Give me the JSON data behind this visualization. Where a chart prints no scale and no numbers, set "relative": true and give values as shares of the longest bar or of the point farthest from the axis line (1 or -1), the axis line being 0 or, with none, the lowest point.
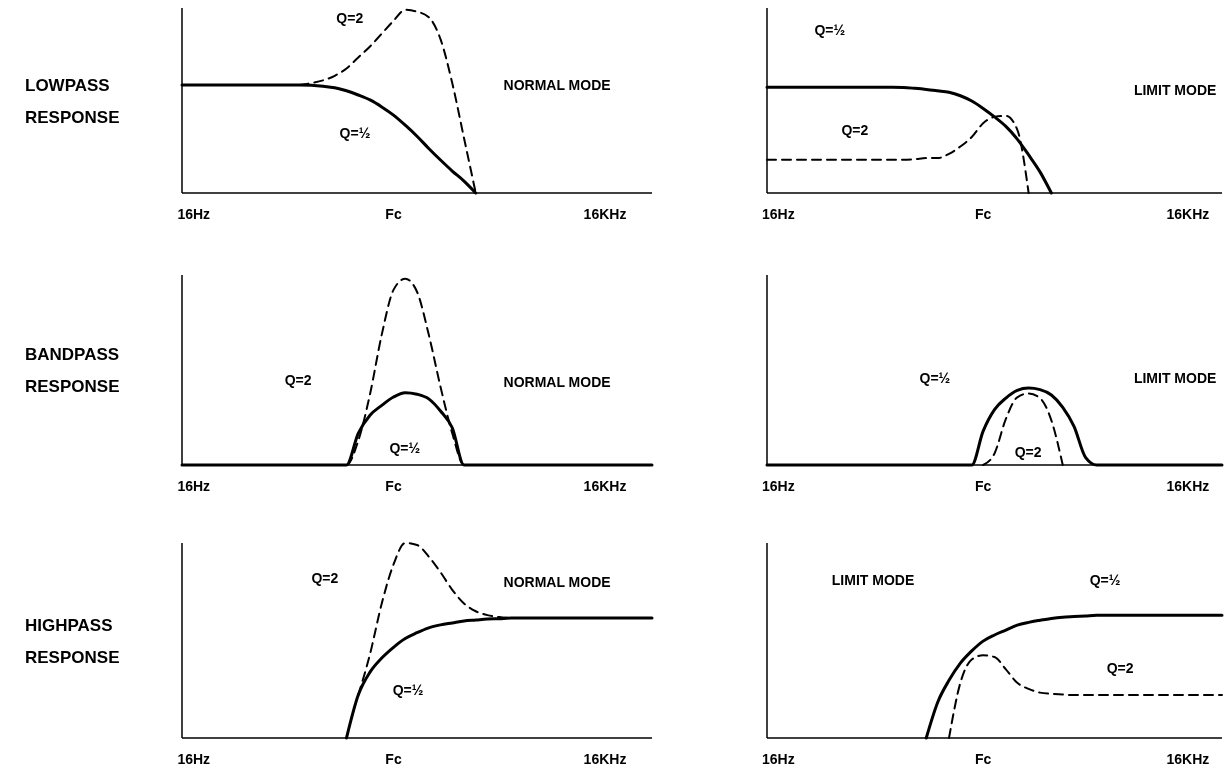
{
  "chart_data": [
    {
      "type": "line",
      "title": "LOWPASS RESPONSE",
      "relative": true,
      "categories": [
        null,
        "16Hz",
        null,
        null,
        null,
        null,
        null,
        null,
        null,
        null,
        null,
        null,
        null,
        null,
        null,
        null,
        null,
        null,
        "Fc",
        null,
        null,
        null,
        null,
        null,
        null,
        null,
        null,
        null,
        null,
        null,
        null,
        null,
        null,
        null,
        null,
        null,
        "16KHz",
        null,
        null,
        null,
        null
      ],
      "series": [
        {
          "color": "#000000",
          "line_style": "solid",
          "values": [
            0.59,
            0.59,
            0.59,
            0.59,
            0.59,
            0.59,
            0.59,
            0.59,
            0.59,
            0.59,
            0.59,
            0.588,
            0.583,
            0.575,
            0.558,
            0.535,
            0.508,
            0.47,
            0.425,
            0.37,
            0.31,
            0.243,
            0.18,
            0.12,
            0.065,
            0,
            null,
            null,
            null,
            null,
            null,
            null,
            null,
            null,
            null,
            null,
            null,
            null,
            null,
            null,
            null
          ]
        },
        {
          "color": "#000000",
          "line_style": "dashed",
          "values": [
            null,
            null,
            null,
            null,
            null,
            null,
            null,
            null,
            null,
            null,
            0.59,
            0.6,
            0.615,
            0.64,
            0.68,
            0.74,
            0.8,
            0.87,
            0.94,
            1,
            0.99,
            0.96,
            0.84,
            0.6,
            0.3,
            0,
            null,
            null,
            null,
            null,
            null,
            null,
            null,
            null,
            null,
            null,
            null,
            null,
            null,
            null,
            null
          ]
        }
      ],
      "annotations": [
        "Q=2",
        "Q=½",
        "NORMAL MODE"
      ]
    },
    {
      "type": "line",
      "relative": true,
      "categories": [
        null,
        "16Hz",
        null,
        null,
        null,
        null,
        null,
        null,
        null,
        null,
        null,
        null,
        null,
        null,
        null,
        null,
        null,
        null,
        null,
        "Fc",
        null,
        null,
        null,
        null,
        null,
        null,
        null,
        null,
        null,
        null,
        null,
        null,
        null,
        null,
        null,
        null,
        null,
        "16KHz",
        null,
        null,
        null
      ],
      "series": [
        {
          "color": "#000000",
          "line_style": "solid",
          "values": [
            1,
            1,
            1,
            1,
            1,
            1,
            1,
            1,
            1,
            1,
            1,
            1,
            0.998,
            0.99,
            0.98,
            0.967,
            0.953,
            0.92,
            0.87,
            0.8,
            0.72,
            0.63,
            0.51,
            0.36,
            0.2,
            0,
            null,
            null,
            null,
            null,
            null,
            null,
            null,
            null,
            null,
            null,
            null,
            null,
            null,
            null,
            null
          ]
        },
        {
          "color": "#000000",
          "line_style": "dashed",
          "values": [
            0.315,
            0.315,
            0.315,
            0.315,
            0.315,
            0.315,
            0.315,
            0.315,
            0.315,
            0.315,
            0.315,
            0.315,
            0.315,
            0.32,
            0.33,
            0.33,
            0.37,
            0.44,
            0.53,
            0.66,
            0.72,
            0.73,
            0.6,
            0,
            null,
            null,
            null,
            null,
            null,
            null,
            null,
            null,
            null,
            null,
            null,
            null,
            null,
            null,
            null,
            null,
            null
          ]
        }
      ],
      "annotations": [
        "Q=½",
        "Q=2",
        "LIMIT MODE"
      ]
    },
    {
      "type": "line",
      "title": "BANDPASS RESPONSE",
      "relative": true,
      "categories": [
        null,
        "16Hz",
        null,
        null,
        null,
        null,
        null,
        null,
        null,
        null,
        null,
        null,
        null,
        null,
        null,
        null,
        null,
        null,
        "Fc",
        null,
        null,
        null,
        null,
        null,
        null,
        null,
        null,
        null,
        null,
        null,
        null,
        null,
        null,
        null,
        null,
        null,
        "16KHz",
        null,
        null,
        null,
        null
      ],
      "series": [
        {
          "color": "#000000",
          "line_style": "solid",
          "values": [
            0,
            0,
            0,
            0,
            0,
            0,
            0,
            0,
            0,
            0,
            0,
            0,
            0,
            0,
            0,
            0.17,
            0.267,
            0.32,
            0.365,
            0.388,
            0.38,
            0.355,
            0.29,
            0.2,
            0,
            0,
            0,
            0,
            0,
            0,
            0,
            0,
            0,
            0,
            0,
            0,
            0,
            0,
            0,
            0,
            0
          ]
        },
        {
          "color": "#000000",
          "line_style": "dashed",
          "values": [
            0,
            0,
            0,
            0,
            0,
            0,
            0,
            0,
            0,
            0,
            0,
            0,
            0,
            0,
            0,
            0.13,
            0.38,
            0.7,
            0.94,
            1,
            0.93,
            0.7,
            0.42,
            0.17,
            0,
            0,
            0,
            0,
            0,
            0,
            0,
            0,
            0,
            0,
            0,
            0,
            0,
            0,
            0,
            0,
            0
          ]
        }
      ],
      "annotations": [
        "Q=2",
        "Q=½",
        "NORMAL MODE"
      ]
    },
    {
      "type": "line",
      "relative": true,
      "categories": [
        null,
        "16Hz",
        null,
        null,
        null,
        null,
        null,
        null,
        null,
        null,
        null,
        null,
        null,
        null,
        null,
        null,
        null,
        null,
        null,
        "Fc",
        null,
        null,
        null,
        null,
        null,
        null,
        null,
        null,
        null,
        null,
        null,
        null,
        null,
        null,
        null,
        null,
        null,
        "16KHz",
        null,
        null,
        null
      ],
      "series": [
        {
          "color": "#000000",
          "line_style": "solid",
          "values": [
            0,
            0,
            0,
            0,
            0,
            0,
            0,
            0,
            0,
            0,
            0,
            0,
            0,
            0,
            0,
            0,
            0,
            0,
            0,
            0.44,
            0.72,
            0.87,
            0.97,
            1,
            0.98,
            0.91,
            0.75,
            0.5,
            0.1,
            0,
            0,
            0,
            0,
            0,
            0,
            0,
            0,
            0,
            0,
            0,
            0
          ]
        },
        {
          "color": "#000000",
          "line_style": "dashed",
          "values": [
            null,
            null,
            null,
            null,
            null,
            null,
            null,
            null,
            null,
            null,
            null,
            null,
            null,
            null,
            null,
            null,
            null,
            null,
            null,
            0,
            0.15,
            0.6,
            0.88,
            0.93,
            0.87,
            0.58,
            0,
            null,
            null,
            null,
            null,
            null,
            null,
            null,
            null,
            null,
            null,
            null,
            null,
            null,
            null
          ]
        }
      ],
      "annotations": [
        "Q=½",
        "Q=2",
        "LIMIT MODE"
      ]
    },
    {
      "type": "line",
      "title": "HIGHPASS RESPONSE",
      "relative": true,
      "categories": [
        null,
        "16Hz",
        null,
        null,
        null,
        null,
        null,
        null,
        null,
        null,
        null,
        null,
        null,
        null,
        null,
        null,
        null,
        null,
        "Fc",
        null,
        null,
        null,
        null,
        null,
        null,
        null,
        null,
        null,
        null,
        null,
        null,
        null,
        null,
        null,
        null,
        null,
        "16KHz",
        null,
        null,
        null,
        null
      ],
      "series": [
        {
          "color": "#000000",
          "line_style": "solid",
          "values": [
            null,
            null,
            null,
            null,
            null,
            null,
            null,
            null,
            null,
            null,
            null,
            null,
            null,
            null,
            0,
            0.22,
            0.338,
            0.41,
            0.465,
            0.51,
            0.54,
            0.565,
            0.58,
            0.59,
            0.6,
            0.605,
            0.61,
            0.612,
            0.615,
            0.615,
            0.615,
            0.615,
            0.615,
            0.615,
            0.615,
            0.615,
            0.615,
            0.615,
            0.615,
            0.615,
            0.615
          ]
        },
        {
          "color": "#000000",
          "line_style": "dashed",
          "values": [
            null,
            null,
            null,
            null,
            null,
            null,
            null,
            null,
            null,
            null,
            null,
            null,
            null,
            null,
            null,
            0.22,
            0.43,
            0.69,
            0.89,
            1,
            0.99,
            0.93,
            0.85,
            0.76,
            0.69,
            0.65,
            0.63,
            0.62,
            0.615,
            null,
            null,
            null,
            null,
            null,
            null,
            null,
            null,
            null,
            null,
            null,
            null
          ]
        }
      ],
      "annotations": [
        "Q=2",
        "Q=½",
        "NORMAL MODE"
      ]
    },
    {
      "type": "line",
      "relative": true,
      "categories": [
        null,
        "16Hz",
        null,
        null,
        null,
        null,
        null,
        null,
        null,
        null,
        null,
        null,
        null,
        null,
        null,
        null,
        null,
        null,
        null,
        "Fc",
        null,
        null,
        null,
        null,
        null,
        null,
        null,
        null,
        null,
        null,
        null,
        null,
        null,
        null,
        null,
        null,
        null,
        "16KHz",
        null,
        null,
        null
      ],
      "series": [
        {
          "color": "#000000",
          "line_style": "solid",
          "values": [
            null,
            null,
            null,
            null,
            null,
            null,
            null,
            null,
            null,
            null,
            null,
            null,
            null,
            null,
            0,
            0.29,
            0.47,
            0.61,
            0.71,
            0.79,
            0.84,
            0.88,
            0.92,
            0.943,
            0.96,
            0.975,
            0.985,
            0.99,
            0.995,
            1,
            1,
            1,
            1,
            1,
            1,
            1,
            1,
            1,
            1,
            1,
            1
          ]
        },
        {
          "color": "#000000",
          "line_style": "dashed",
          "values": [
            null,
            null,
            null,
            null,
            null,
            null,
            null,
            null,
            null,
            null,
            null,
            null,
            null,
            null,
            null,
            null,
            0,
            0.45,
            0.64,
            0.675,
            0.66,
            0.56,
            0.45,
            0.4,
            0.37,
            0.36,
            0.355,
            0.35,
            0.35,
            0.35,
            0.35,
            0.35,
            0.35,
            0.35,
            0.35,
            0.35,
            0.35,
            0.35,
            0.35,
            0.35,
            0.35
          ]
        }
      ],
      "annotations": [
        "LIMIT MODE",
        "Q=½",
        "Q=2"
      ]
    }
  ]
}
